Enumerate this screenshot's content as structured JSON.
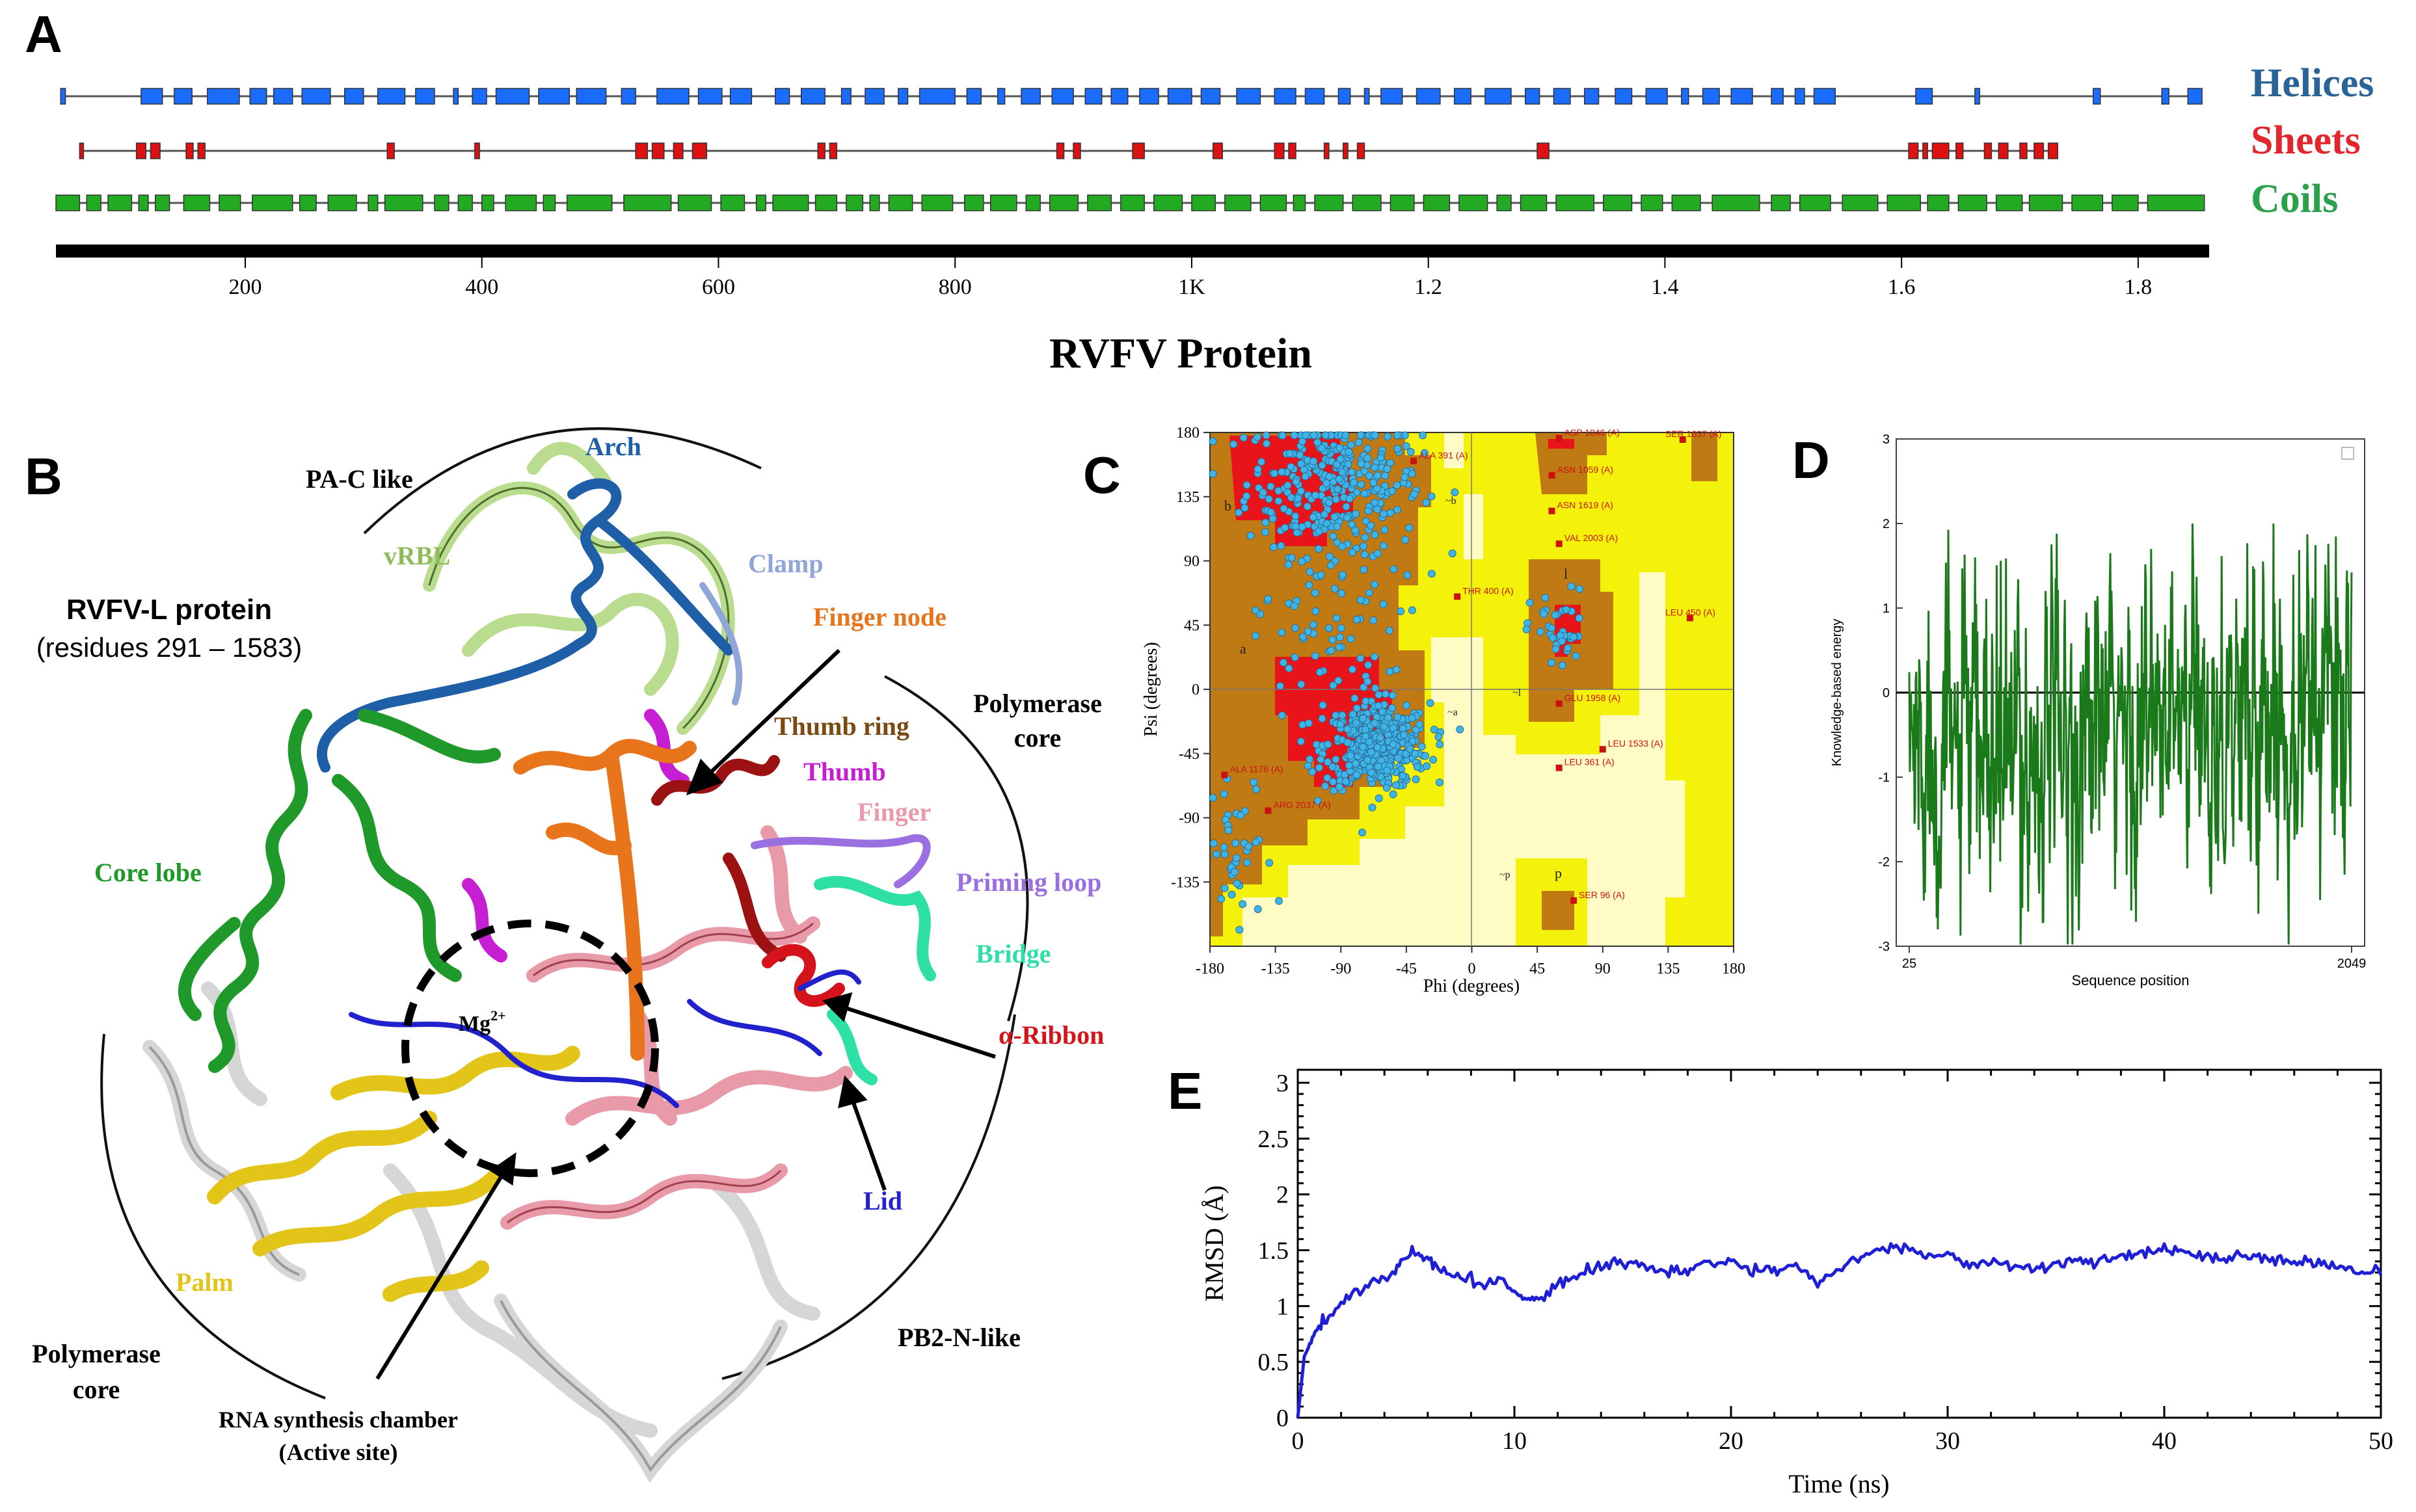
{
  "panel_letters": {
    "a": "A",
    "b": "B",
    "c": "C",
    "d": "D",
    "e": "E"
  },
  "panel_a": {
    "legend": {
      "helices": "Helices",
      "sheets": "Sheets",
      "coils": "Coils"
    },
    "title": "RVFV Protein",
    "ticks": [
      "200",
      "400",
      "600",
      "800",
      "1K",
      "1.2",
      "1.4",
      "1.6",
      "1.8"
    ],
    "colors": {
      "helices_track": "#1a6cff",
      "sheets_track": "#dd1111",
      "coils_track": "#22aa22",
      "helices_text": "#2a6496",
      "sheets_text": "#e3262e",
      "coils_text": "#2aa14a"
    },
    "chart_data": {
      "type": "track",
      "xlim": [
        40,
        1860
      ],
      "helices": [
        [
          44,
          48
        ],
        [
          112,
          130
        ],
        [
          140,
          155
        ],
        [
          168,
          195
        ],
        [
          204,
          218
        ],
        [
          224,
          240
        ],
        [
          248,
          272
        ],
        [
          284,
          300
        ],
        [
          312,
          335
        ],
        [
          344,
          360
        ],
        [
          376,
          380
        ],
        [
          392,
          404
        ],
        [
          412,
          440
        ],
        [
          448,
          474
        ],
        [
          480,
          505
        ],
        [
          518,
          530
        ],
        [
          548,
          575
        ],
        [
          583,
          603
        ],
        [
          610,
          628
        ],
        [
          648,
          660
        ],
        [
          670,
          690
        ],
        [
          704,
          712
        ],
        [
          724,
          740
        ],
        [
          752,
          760
        ],
        [
          770,
          800
        ],
        [
          810,
          822
        ],
        [
          836,
          842
        ],
        [
          856,
          872
        ],
        [
          882,
          900
        ],
        [
          910,
          924
        ],
        [
          932,
          946
        ],
        [
          956,
          972
        ],
        [
          980,
          1000
        ],
        [
          1008,
          1024
        ],
        [
          1038,
          1058
        ],
        [
          1070,
          1088
        ],
        [
          1096,
          1112
        ],
        [
          1124,
          1134
        ],
        [
          1146,
          1150
        ],
        [
          1160,
          1178
        ],
        [
          1190,
          1210
        ],
        [
          1222,
          1236
        ],
        [
          1248,
          1270
        ],
        [
          1282,
          1294
        ],
        [
          1306,
          1320
        ],
        [
          1332,
          1344
        ],
        [
          1358,
          1372
        ],
        [
          1384,
          1402
        ],
        [
          1414,
          1420
        ],
        [
          1432,
          1446
        ],
        [
          1456,
          1474
        ],
        [
          1490,
          1500
        ],
        [
          1510,
          1518
        ],
        [
          1526,
          1544
        ],
        [
          1612,
          1626
        ],
        [
          1662,
          1666
        ],
        [
          1762,
          1768
        ],
        [
          1820,
          1826
        ],
        [
          1842,
          1854
        ]
      ],
      "sheets": [
        [
          60,
          63
        ],
        [
          108,
          116
        ],
        [
          120,
          128
        ],
        [
          150,
          156
        ],
        [
          160,
          166
        ],
        [
          320,
          326
        ],
        [
          394,
          398
        ],
        [
          530,
          540
        ],
        [
          544,
          554
        ],
        [
          562,
          570
        ],
        [
          578,
          590
        ],
        [
          684,
          690
        ],
        [
          694,
          700
        ],
        [
          886,
          892
        ],
        [
          900,
          906
        ],
        [
          950,
          960
        ],
        [
          1018,
          1026
        ],
        [
          1070,
          1078
        ],
        [
          1082,
          1088
        ],
        [
          1112,
          1116
        ],
        [
          1128,
          1132
        ],
        [
          1140,
          1146
        ],
        [
          1292,
          1302
        ],
        [
          1606,
          1614
        ],
        [
          1618,
          1622
        ],
        [
          1626,
          1640
        ],
        [
          1646,
          1652
        ],
        [
          1670,
          1676
        ],
        [
          1682,
          1690
        ],
        [
          1700,
          1706
        ],
        [
          1712,
          1720
        ],
        [
          1724,
          1732
        ]
      ],
      "coils": [
        [
          40,
          60
        ],
        [
          66,
          78
        ],
        [
          84,
          104
        ],
        [
          110,
          118
        ],
        [
          124,
          136
        ],
        [
          148,
          170
        ],
        [
          178,
          196
        ],
        [
          206,
          240
        ],
        [
          246,
          260
        ],
        [
          270,
          294
        ],
        [
          304,
          312
        ],
        [
          318,
          350
        ],
        [
          360,
          372
        ],
        [
          380,
          392
        ],
        [
          400,
          410
        ],
        [
          420,
          446
        ],
        [
          452,
          462
        ],
        [
          472,
          510
        ],
        [
          520,
          560
        ],
        [
          566,
          594
        ],
        [
          602,
          622
        ],
        [
          632,
          640
        ],
        [
          646,
          676
        ],
        [
          682,
          700
        ],
        [
          708,
          722
        ],
        [
          728,
          736
        ],
        [
          744,
          764
        ],
        [
          772,
          798
        ],
        [
          808,
          824
        ],
        [
          830,
          852
        ],
        [
          860,
          872
        ],
        [
          880,
          904
        ],
        [
          912,
          932
        ],
        [
          940,
          960
        ],
        [
          968,
          992
        ],
        [
          1000,
          1020
        ],
        [
          1028,
          1050
        ],
        [
          1058,
          1080
        ],
        [
          1086,
          1096
        ],
        [
          1104,
          1128
        ],
        [
          1136,
          1160
        ],
        [
          1168,
          1188
        ],
        [
          1196,
          1218
        ],
        [
          1226,
          1250
        ],
        [
          1258,
          1270
        ],
        [
          1278,
          1300
        ],
        [
          1308,
          1340
        ],
        [
          1348,
          1372
        ],
        [
          1380,
          1398
        ],
        [
          1406,
          1430
        ],
        [
          1440,
          1480
        ],
        [
          1490,
          1506
        ],
        [
          1514,
          1540
        ],
        [
          1550,
          1580
        ],
        [
          1588,
          1616
        ],
        [
          1622,
          1640
        ],
        [
          1648,
          1672
        ],
        [
          1680,
          1702
        ],
        [
          1708,
          1736
        ],
        [
          1744,
          1770
        ],
        [
          1778,
          1800
        ],
        [
          1808,
          1856
        ]
      ]
    }
  },
  "panel_b": {
    "labels": {
      "rvfv_l_title": "RVFV-L protein",
      "residues": "(residues 291 – 1583)",
      "pa_c_like": "PA-C like",
      "arch": "Arch",
      "vrbl": "vRBL",
      "clamp": "Clamp",
      "finger_node": "Finger node",
      "polymerase_core_top_1": "Polymerase",
      "polymerase_core_top_2": "core",
      "thumb_ring": "Thumb  ring",
      "thumb": "Thumb",
      "finger": "Finger",
      "priming_loop": "Priming loop",
      "bridge": "Bridge",
      "core_lobe": "Core lobe",
      "mg_base": "Mg",
      "mg_sup": "2+",
      "alpha_ribbon": "α-Ribbon",
      "lid": "Lid",
      "palm": "Palm",
      "polymerase_core_bottom_1": "Polymerase",
      "polymerase_core_bottom_2": "core",
      "pb2_n_like": "PB2-N-like",
      "rna_chamber": "RNA synthesis chamber",
      "active_site": "(Active site)"
    },
    "colors": {
      "arch": "#1f5fa8",
      "vrbl": "#8fbd5a",
      "clamp": "#8fa6d9",
      "finger_node": "#e8741c",
      "thumb_ring": "#7a4a12",
      "thumb": "#c61fd3",
      "finger": "#e89aa8",
      "priming_loop": "#9a6fe0",
      "bridge": "#2fe0a6",
      "core_lobe": "#1f9a2a",
      "alpha_ribbon": "#d4141a",
      "lid": "#2222cc",
      "palm": "#e3c51a"
    }
  },
  "panel_c": {
    "xlabel": "Phi (degrees)",
    "ylabel": "Psi (degrees)",
    "xticks": [
      "-180",
      "-135",
      "-90",
      "-45",
      "0",
      "45",
      "90",
      "135",
      "180"
    ],
    "yticks": [
      "180",
      "135",
      "90",
      "45",
      "0",
      "-45",
      "-90",
      "-135"
    ],
    "region_letters": {
      "b": "b",
      "a": "a",
      "l": "l",
      "p": "p",
      "tb": "~b",
      "ta": "~a",
      "tl": "~l",
      "tp": "~p"
    },
    "annotations": [
      "ASP 1046 (A)",
      "SER 1037 (A)",
      "ALA 391 (A)",
      "ASN 1059 (A)",
      "ASN 1619 (A)",
      "VAL 2003 (A)",
      "THR 400 (A)",
      "LEU 450 (A)",
      "GLU 1958 (A)",
      "LEU 1533 (A)",
      "LEU 361 (A)",
      "ARG 2037 (A)",
      "ALA 1176 (A)",
      "SER 96 (A)"
    ],
    "chart_data": {
      "type": "scatter",
      "title": "",
      "xlabel": "Phi (degrees)",
      "ylabel": "Psi (degrees)",
      "xlim": [
        -180,
        180
      ],
      "ylim": [
        -180,
        180
      ],
      "clusters": [
        {
          "name": "beta",
          "center": [
            -95,
            145
          ],
          "spread": [
            30,
            25
          ],
          "count": 320
        },
        {
          "name": "alpha",
          "center": [
            -65,
            -40
          ],
          "spread": [
            18,
            15
          ],
          "count": 420
        },
        {
          "name": "bridge",
          "center": [
            -100,
            40
          ],
          "spread": [
            25,
            40
          ],
          "count": 90
        },
        {
          "name": "left-handed",
          "center": [
            60,
            40
          ],
          "spread": [
            10,
            15
          ],
          "count": 40
        },
        {
          "name": "ppII-edge",
          "center": [
            -160,
            -120
          ],
          "spread": [
            12,
            30
          ],
          "count": 40
        }
      ],
      "outliers": [
        [
          60,
          176
        ],
        [
          145,
          175
        ],
        [
          -40,
          160
        ],
        [
          55,
          150
        ],
        [
          55,
          125
        ],
        [
          60,
          102
        ],
        [
          -10,
          65
        ],
        [
          150,
          50
        ],
        [
          60,
          -10
        ],
        [
          90,
          -42
        ],
        [
          60,
          -55
        ],
        [
          -140,
          -85
        ],
        [
          -170,
          -60
        ],
        [
          70,
          -148
        ]
      ]
    }
  },
  "panel_d": {
    "xlabel": "Sequence position",
    "ylabel": "Knowledge-based energy",
    "yticks": [
      "3",
      "2",
      "1",
      "0",
      "-1",
      "-2",
      "-3"
    ],
    "xticks": [
      "25",
      "2049"
    ],
    "chart_data": {
      "type": "line",
      "xlabel": "Sequence position",
      "ylabel": "Knowledge-based energy",
      "xlim": [
        25,
        2049
      ],
      "ylim": [
        -3,
        3
      ],
      "series": [
        {
          "name": "energy",
          "color": "#1a7a1a",
          "x_start": 25,
          "x_end": 2049,
          "n_points": 760,
          "mean_trend": [
            [
              25,
              -0.6
            ],
            [
              400,
              -0.8
            ],
            [
              800,
              -0.6
            ],
            [
              1200,
              -0.4
            ],
            [
              1600,
              -0.3
            ],
            [
              2049,
              0.1
            ]
          ],
          "amplitude": 0.9
        }
      ]
    }
  },
  "panel_e": {
    "xlabel": "Time (ns)",
    "ylabel": "RMSD (Å)",
    "xticks": [
      "0",
      "10",
      "20",
      "30",
      "40",
      "50"
    ],
    "yticks": [
      "0",
      "0.5",
      "1",
      "1.5",
      "2",
      "2.5",
      "3"
    ],
    "chart_data": {
      "type": "line",
      "xlabel": "Time (ns)",
      "ylabel": "RMSD (Å)",
      "xlim": [
        0,
        50
      ],
      "ylim": [
        0,
        3
      ],
      "series": [
        {
          "name": "RMSD",
          "color": "#1f1fd6",
          "x": [
            0,
            0.3,
            0.8,
            1.5,
            2.5,
            3.5,
            4.5,
            5.2,
            5.8,
            6.5,
            7.5,
            8.5,
            9.5,
            10.3,
            11,
            12,
            13,
            14,
            15,
            16,
            17,
            18,
            19,
            20,
            21,
            22,
            23,
            24,
            25,
            26,
            27,
            28,
            29,
            30,
            31,
            32,
            33,
            34,
            35,
            36,
            37,
            38,
            39,
            40,
            41,
            42,
            43,
            44,
            45,
            46,
            47,
            48,
            49,
            50
          ],
          "values": [
            0.0,
            0.55,
            0.75,
            0.92,
            1.12,
            1.22,
            1.3,
            1.5,
            1.45,
            1.32,
            1.25,
            1.2,
            1.25,
            1.05,
            1.05,
            1.18,
            1.28,
            1.35,
            1.4,
            1.35,
            1.3,
            1.3,
            1.38,
            1.4,
            1.3,
            1.32,
            1.38,
            1.2,
            1.35,
            1.45,
            1.5,
            1.55,
            1.45,
            1.45,
            1.38,
            1.4,
            1.36,
            1.32,
            1.38,
            1.4,
            1.42,
            1.45,
            1.45,
            1.52,
            1.48,
            1.44,
            1.42,
            1.45,
            1.42,
            1.4,
            1.38,
            1.35,
            1.32,
            1.28
          ]
        }
      ]
    }
  }
}
